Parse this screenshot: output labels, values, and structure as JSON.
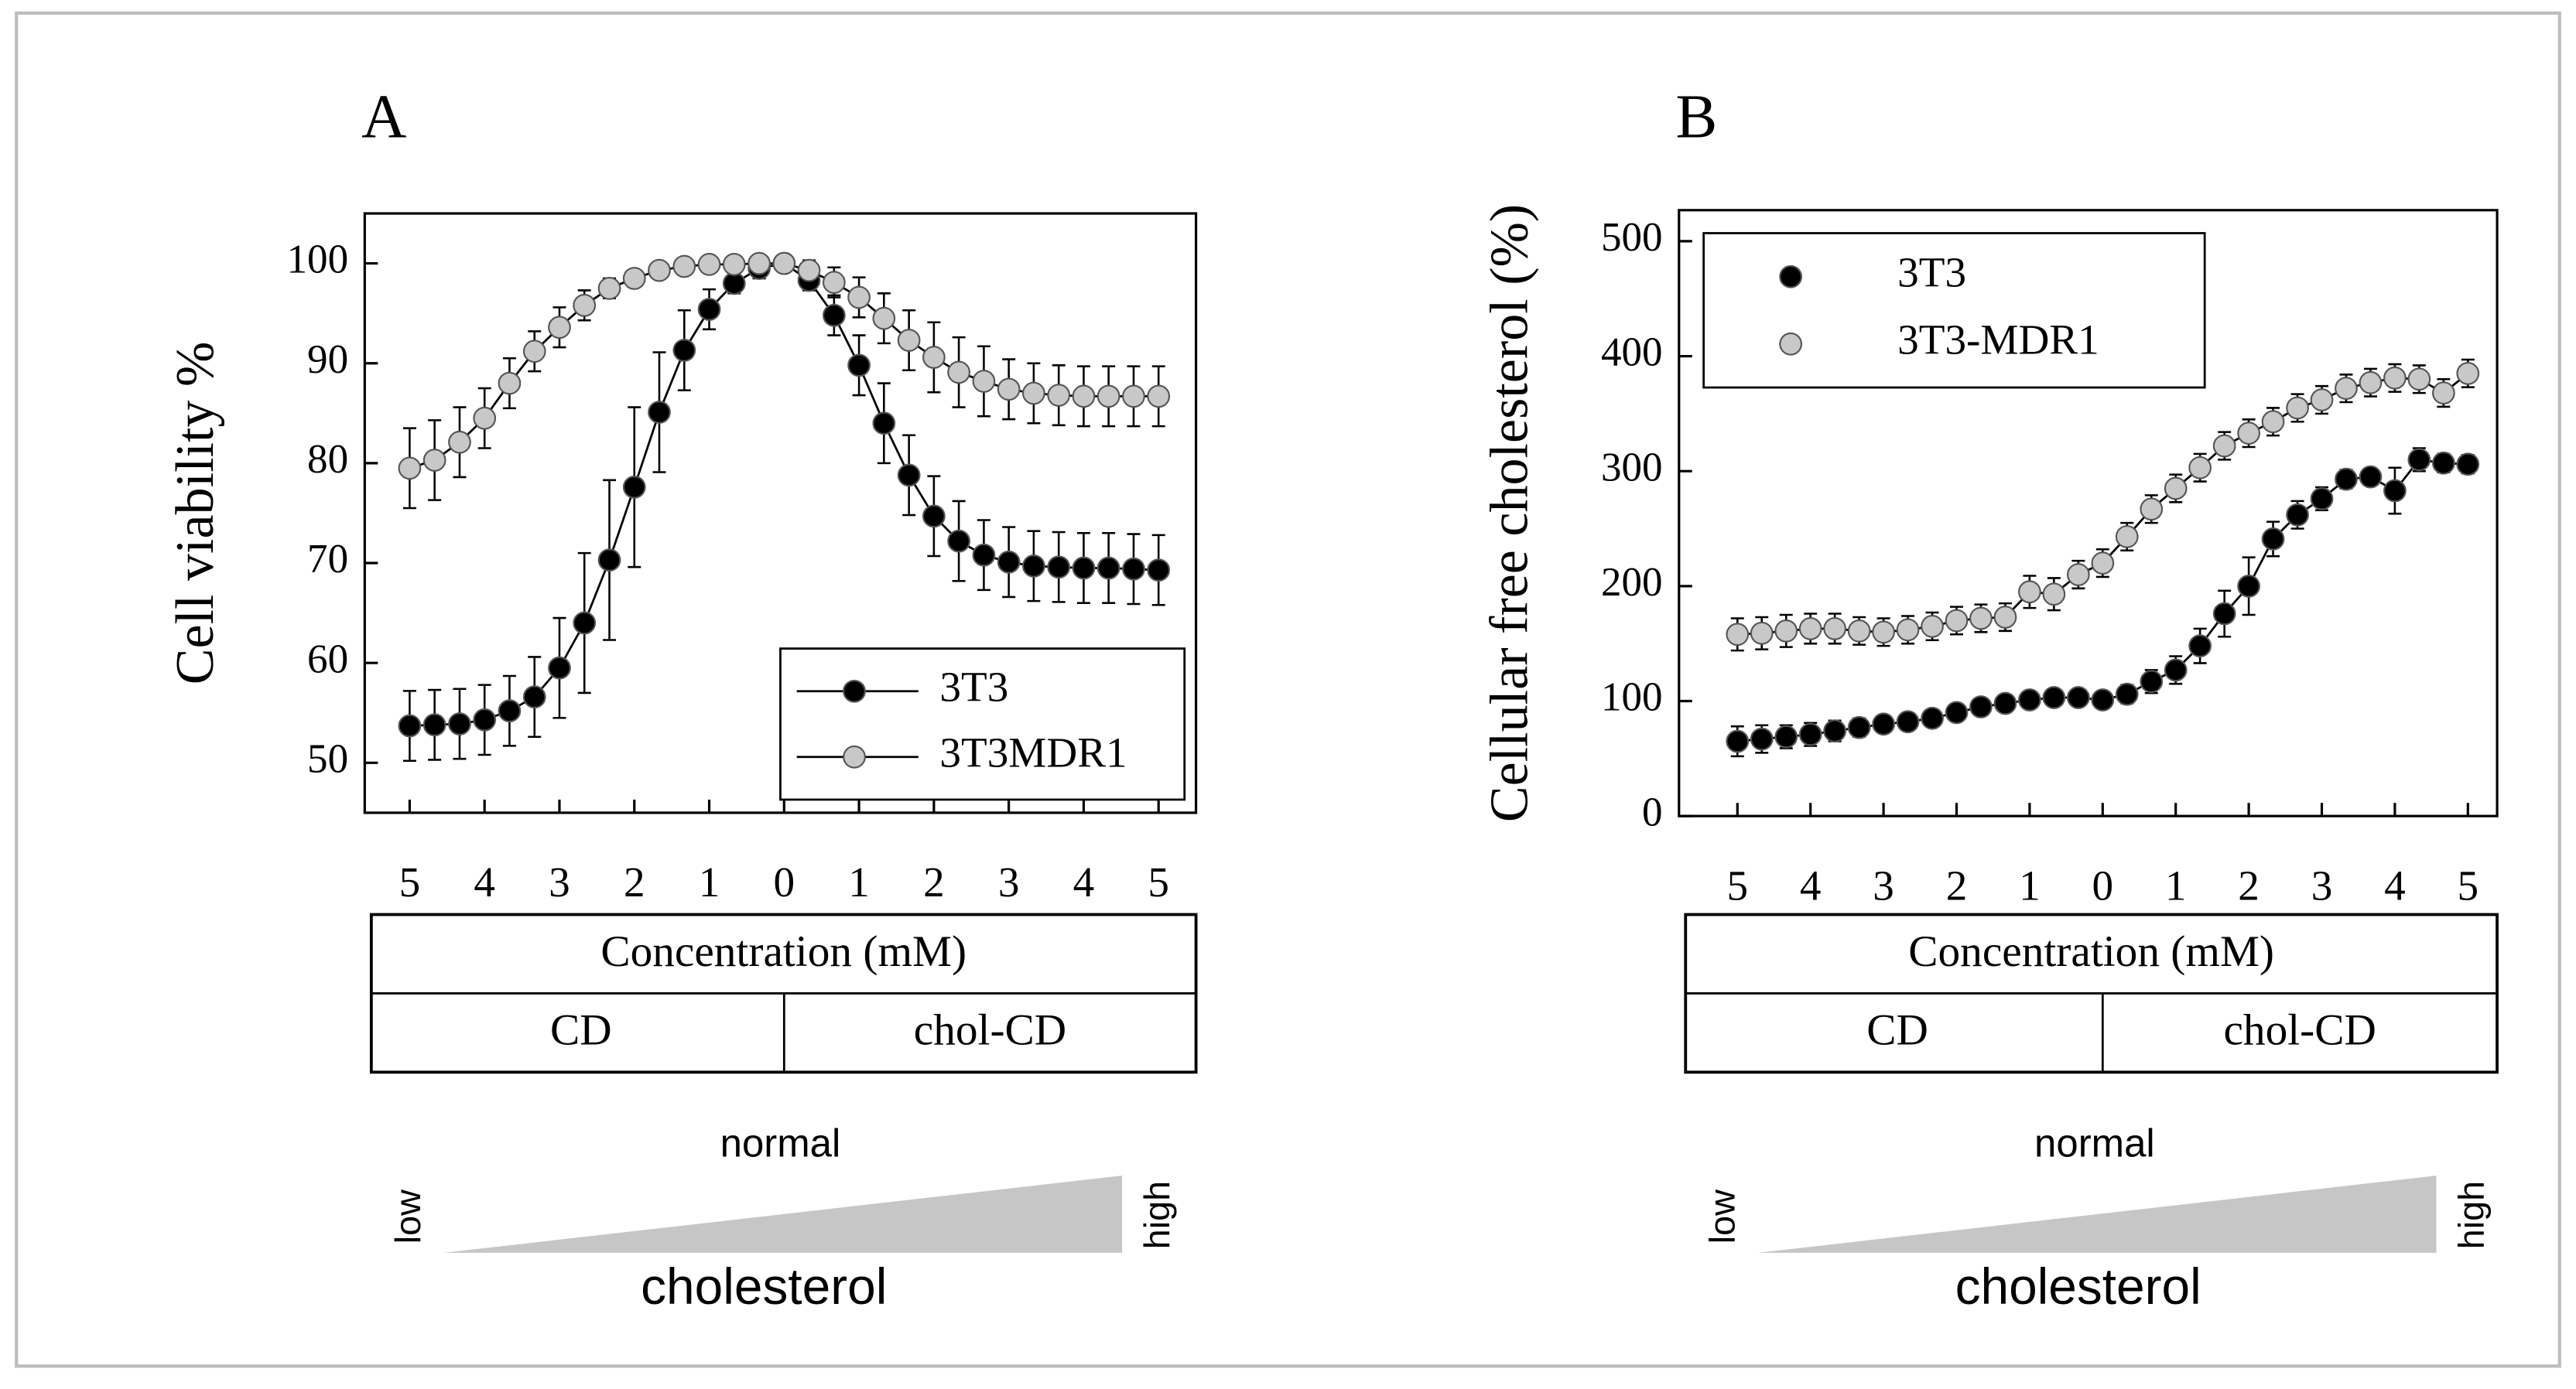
{
  "chart_data": [
    {
      "type": "line",
      "title": "A",
      "ylabel": "Cell viability %",
      "xlim": [
        -5.6,
        5.5
      ],
      "ylim": [
        45,
        105
      ],
      "xticks": [
        {
          "value": -5,
          "label": "5"
        },
        {
          "value": -4,
          "label": "4"
        },
        {
          "value": -3,
          "label": "3"
        },
        {
          "value": -2,
          "label": "2"
        },
        {
          "value": -1,
          "label": "1"
        },
        0,
        1,
        2,
        3,
        4,
        5
      ],
      "yticks": [
        50,
        60,
        70,
        80,
        90,
        100
      ],
      "x": [
        -5,
        -4.667,
        -4.333,
        -4,
        -3.667,
        -3.333,
        -3,
        -2.667,
        -2.333,
        -2,
        -1.667,
        -1.333,
        -1,
        -0.667,
        -0.333,
        0,
        0.333,
        0.667,
        1,
        1.333,
        1.667,
        2,
        2.333,
        2.667,
        3,
        3.333,
        3.667,
        4,
        4.333,
        4.667,
        5
      ],
      "legend": "lower right",
      "legend_line": true,
      "series": [
        {
          "name": "3T3",
          "color": "#000000",
          "values": [
            53.7,
            53.8,
            53.9,
            54.3,
            55.2,
            56.6,
            59.5,
            64,
            70.3,
            77.6,
            85.1,
            91.3,
            95.4,
            98,
            99.5,
            100,
            98.3,
            94.8,
            89.8,
            84,
            78.8,
            74.7,
            72.2,
            70.8,
            70.1,
            69.7,
            69.6,
            69.5,
            69.5,
            69.4,
            69.3
          ],
          "errors": [
            3.5,
            3.5,
            3.5,
            3.5,
            3.5,
            4,
            5,
            7,
            8,
            8,
            6,
            4,
            2,
            1,
            1,
            0.5,
            1,
            2,
            3,
            4,
            4,
            4,
            4,
            3.5,
            3.5,
            3.5,
            3.5,
            3.5,
            3.5,
            3.5,
            3.5
          ]
        },
        {
          "name": "3T3MDR1",
          "color": "#c8c8c8",
          "values": [
            79.5,
            80.3,
            82.1,
            84.5,
            88,
            91.2,
            93.6,
            95.8,
            97.5,
            98.5,
            99.3,
            99.7,
            99.9,
            99.9,
            100,
            100,
            99.3,
            98.1,
            96.6,
            94.5,
            92.3,
            90.6,
            89.1,
            88.2,
            87.4,
            87,
            86.8,
            86.7,
            86.7,
            86.7,
            86.7
          ],
          "errors": [
            4,
            4,
            3.5,
            3,
            2.5,
            2,
            2,
            1.5,
            1,
            0.5,
            0.5,
            0.3,
            0.3,
            0.3,
            0.3,
            0.3,
            1,
            1.5,
            2,
            2.5,
            3,
            3.5,
            3.5,
            3.5,
            3,
            3,
            3,
            3,
            3,
            3,
            3
          ]
        }
      ],
      "axis_table": {
        "header": "Concentration (mM)",
        "groups": [
          "CD",
          "chol-CD"
        ]
      },
      "gradient": {
        "low": "low",
        "mid": "normal",
        "high": "high",
        "label": "cholesterol"
      }
    },
    {
      "type": "line",
      "title": "B",
      "ylabel": "Cellular free cholesterol (%)",
      "xlim": [
        -5.8,
        5.4
      ],
      "ylim": [
        0,
        527
      ],
      "xticks": [
        {
          "value": -5,
          "label": "5"
        },
        {
          "value": -4,
          "label": "4"
        },
        {
          "value": -3,
          "label": "3"
        },
        {
          "value": -2,
          "label": "2"
        },
        {
          "value": -1,
          "label": "1"
        },
        0,
        1,
        2,
        3,
        4,
        5
      ],
      "yticks": [
        0,
        100,
        200,
        300,
        400,
        500
      ],
      "x": [
        -5,
        -4.667,
        -4.333,
        -4,
        -3.667,
        -3.333,
        -3,
        -2.667,
        -2.333,
        -2,
        -1.667,
        -1.333,
        -1,
        -0.667,
        -0.333,
        0,
        0.333,
        0.667,
        1,
        1.333,
        1.667,
        2,
        2.333,
        2.667,
        3,
        3.333,
        3.667,
        4,
        4.333,
        4.667,
        5
      ],
      "legend": "upper left",
      "legend_line": false,
      "series": [
        {
          "name": "3T3",
          "color": "#000000",
          "values": [
            65,
            67,
            69,
            71,
            74,
            77,
            80,
            82,
            85,
            90,
            95,
            98,
            101,
            103,
            103,
            101,
            106,
            117,
            127,
            148,
            176,
            200,
            241,
            262,
            276,
            293,
            295,
            283,
            310,
            307,
            306
          ],
          "errors": [
            13,
            12,
            10,
            10,
            9,
            8,
            7,
            6,
            6,
            6,
            5,
            5,
            5,
            5,
            5,
            5,
            8,
            10,
            12,
            15,
            20,
            25,
            15,
            12,
            10,
            8,
            5,
            20,
            10,
            8,
            8
          ]
        },
        {
          "name": "3T3-MDR1",
          "color": "#c8c8c8",
          "values": [
            158,
            159,
            161,
            163,
            163,
            161,
            160,
            162,
            165,
            170,
            172,
            173,
            195,
            193,
            210,
            220,
            243,
            267,
            285,
            303,
            322,
            333,
            343,
            355,
            362,
            372,
            377,
            381,
            380,
            368,
            385
          ],
          "errors": [
            14,
            14,
            14,
            13,
            13,
            12,
            12,
            12,
            12,
            12,
            12,
            12,
            14,
            14,
            12,
            12,
            12,
            12,
            12,
            12,
            12,
            12,
            12,
            12,
            12,
            12,
            12,
            12,
            12,
            12,
            12
          ]
        }
      ],
      "axis_table": {
        "header": "Concentration (mM)",
        "groups": [
          "CD",
          "chol-CD"
        ]
      },
      "gradient": {
        "low": "low",
        "mid": "normal",
        "high": "high",
        "label": "cholesterol"
      }
    }
  ]
}
